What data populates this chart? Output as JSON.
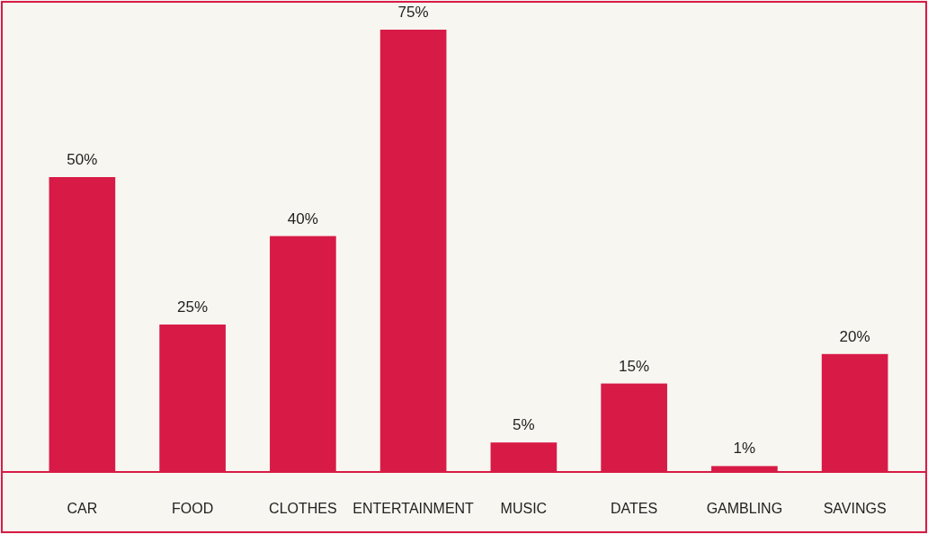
{
  "chart_data": {
    "type": "bar",
    "relative": false,
    "categories": [
      "CAR",
      "FOOD",
      "CLOTHES",
      "ENTERTAINMENT",
      "MUSIC",
      "DATES",
      "GAMBLING",
      "SAVINGS"
    ],
    "values": [
      50,
      25,
      40,
      75,
      5,
      15,
      1,
      20
    ],
    "value_labels": [
      "50%",
      "25%",
      "40%",
      "75%",
      "5%",
      "15%",
      "1%",
      "20%"
    ],
    "color": "#d81b46"
  }
}
